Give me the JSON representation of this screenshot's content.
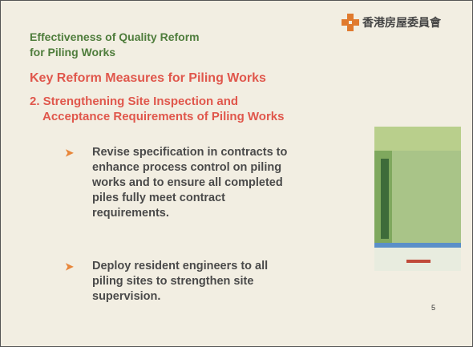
{
  "header": {
    "title_lines": [
      "Effectiveness of Quality Reform",
      "for Piling Works"
    ],
    "logo_text": "香港房屋委員會"
  },
  "heading": "Key Reform Measures for Piling Works",
  "subheading_lines": [
    "2. Strengthening Site Inspection and",
    "Acceptance Requirements of Piling Works"
  ],
  "bullets": [
    {
      "lines": [
        "Revise specification in contracts to",
        "enhance process control on piling",
        "works and to ensure all completed",
        "piles fully meet contract",
        "requirements."
      ]
    },
    {
      "lines": [
        "Deploy resident engineers to all",
        "piling sites to strengthen site",
        "supervision."
      ]
    }
  ],
  "page_number": "5"
}
